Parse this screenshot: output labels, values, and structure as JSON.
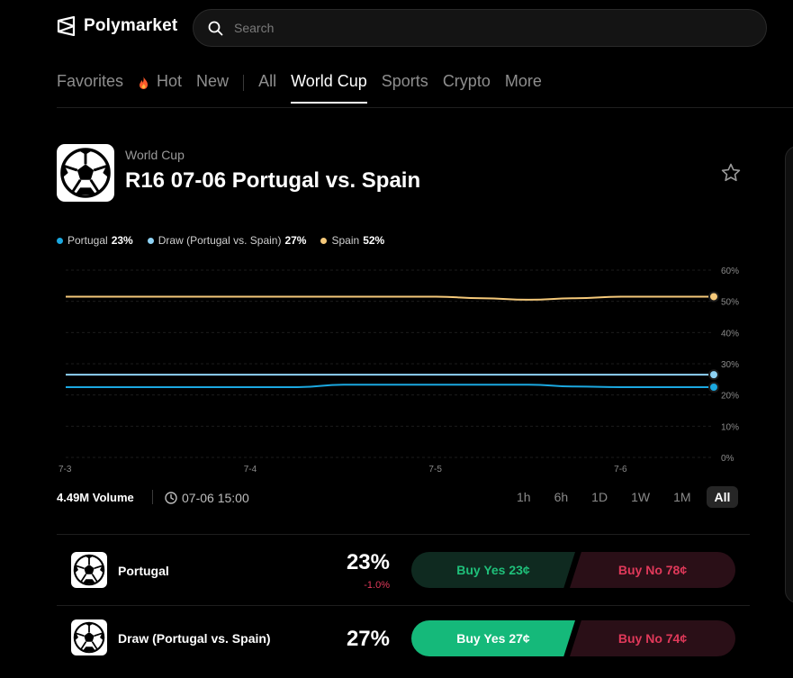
{
  "brand": {
    "name": "Polymarket",
    "logo_icon": "polymarket-logo-icon"
  },
  "search": {
    "placeholder": "Search"
  },
  "nav": {
    "items": [
      {
        "label": "Favorites",
        "active": false
      },
      {
        "label": "Hot",
        "active": false,
        "icon": "fire-icon"
      },
      {
        "label": "New",
        "active": false
      },
      {
        "label": "All",
        "active": false
      },
      {
        "label": "World Cup",
        "active": true
      },
      {
        "label": "Sports",
        "active": false
      },
      {
        "label": "Crypto",
        "active": false
      },
      {
        "label": "More",
        "active": false
      }
    ]
  },
  "event": {
    "category": "World Cup",
    "title": "R16 07-06 Portugal vs. Spain",
    "icon": "soccer-ball-icon"
  },
  "legend": [
    {
      "name": "Portugal",
      "value": "23%",
      "color": "#1ba8e0"
    },
    {
      "name": "Draw (Portugal vs. Spain)",
      "value": "27%",
      "color": "#8fd3f5"
    },
    {
      "name": "Spain",
      "value": "52%",
      "color": "#f5c97a"
    }
  ],
  "chart_data": {
    "type": "line",
    "x_ticks": [
      "7-3",
      "7-4",
      "7-5",
      "7-6"
    ],
    "y_ticks": [
      "60%",
      "50%",
      "40%",
      "30%",
      "20%",
      "10%",
      "0%"
    ],
    "ylim": [
      0,
      60
    ],
    "grid": true,
    "series": [
      {
        "name": "Spain",
        "color": "#f5c97a",
        "x": [
          0,
          0.5,
          1.0,
          1.5,
          2.0,
          2.25,
          2.5,
          2.75,
          3.0,
          3.5
        ],
        "values": [
          51.5,
          51.5,
          51.5,
          51.5,
          51.5,
          51,
          50.5,
          51,
          51.5,
          51.5
        ]
      },
      {
        "name": "Draw (Portugal vs. Spain)",
        "color": "#8fd3f5",
        "x": [
          0,
          1.0,
          2.0,
          3.0,
          3.5
        ],
        "values": [
          26.5,
          26.5,
          26.5,
          26.5,
          26.5
        ]
      },
      {
        "name": "Portugal",
        "color": "#1ba8e0",
        "x": [
          0,
          0.5,
          1.0,
          1.25,
          1.5,
          2.0,
          2.5,
          2.75,
          3.0,
          3.5
        ],
        "values": [
          22.5,
          22.5,
          22.5,
          22.5,
          23.3,
          23.3,
          23.3,
          22.7,
          22.5,
          22.5
        ]
      }
    ]
  },
  "stats": {
    "volume": "4.49M Volume",
    "end_date": "07-06 15:00",
    "clock_icon": "clock-icon"
  },
  "ranges": [
    {
      "label": "1h",
      "active": false
    },
    {
      "label": "6h",
      "active": false
    },
    {
      "label": "1D",
      "active": false
    },
    {
      "label": "1W",
      "active": false
    },
    {
      "label": "1M",
      "active": false
    },
    {
      "label": "All",
      "active": true
    }
  ],
  "outcomes": [
    {
      "name": "Portugal",
      "percent": "23%",
      "change": "-1.0%",
      "yes_label": "Buy Yes 23¢",
      "no_label": "Buy No 78¢",
      "highlighted": false
    },
    {
      "name": "Draw (Portugal vs. Spain)",
      "percent": "27%",
      "change": "",
      "yes_label": "Buy Yes 27¢",
      "no_label": "Buy No 74¢",
      "highlighted": true
    }
  ],
  "colors": {
    "yes_dim_bg": "#0f2a20",
    "yes_dim_text": "#1fc07a",
    "yes_bright_bg": "#15b97a",
    "yes_bright_text": "#ffffff",
    "no_bg": "#2a0f17",
    "no_text": "#e0395a",
    "change_negative": "#e0395a"
  }
}
